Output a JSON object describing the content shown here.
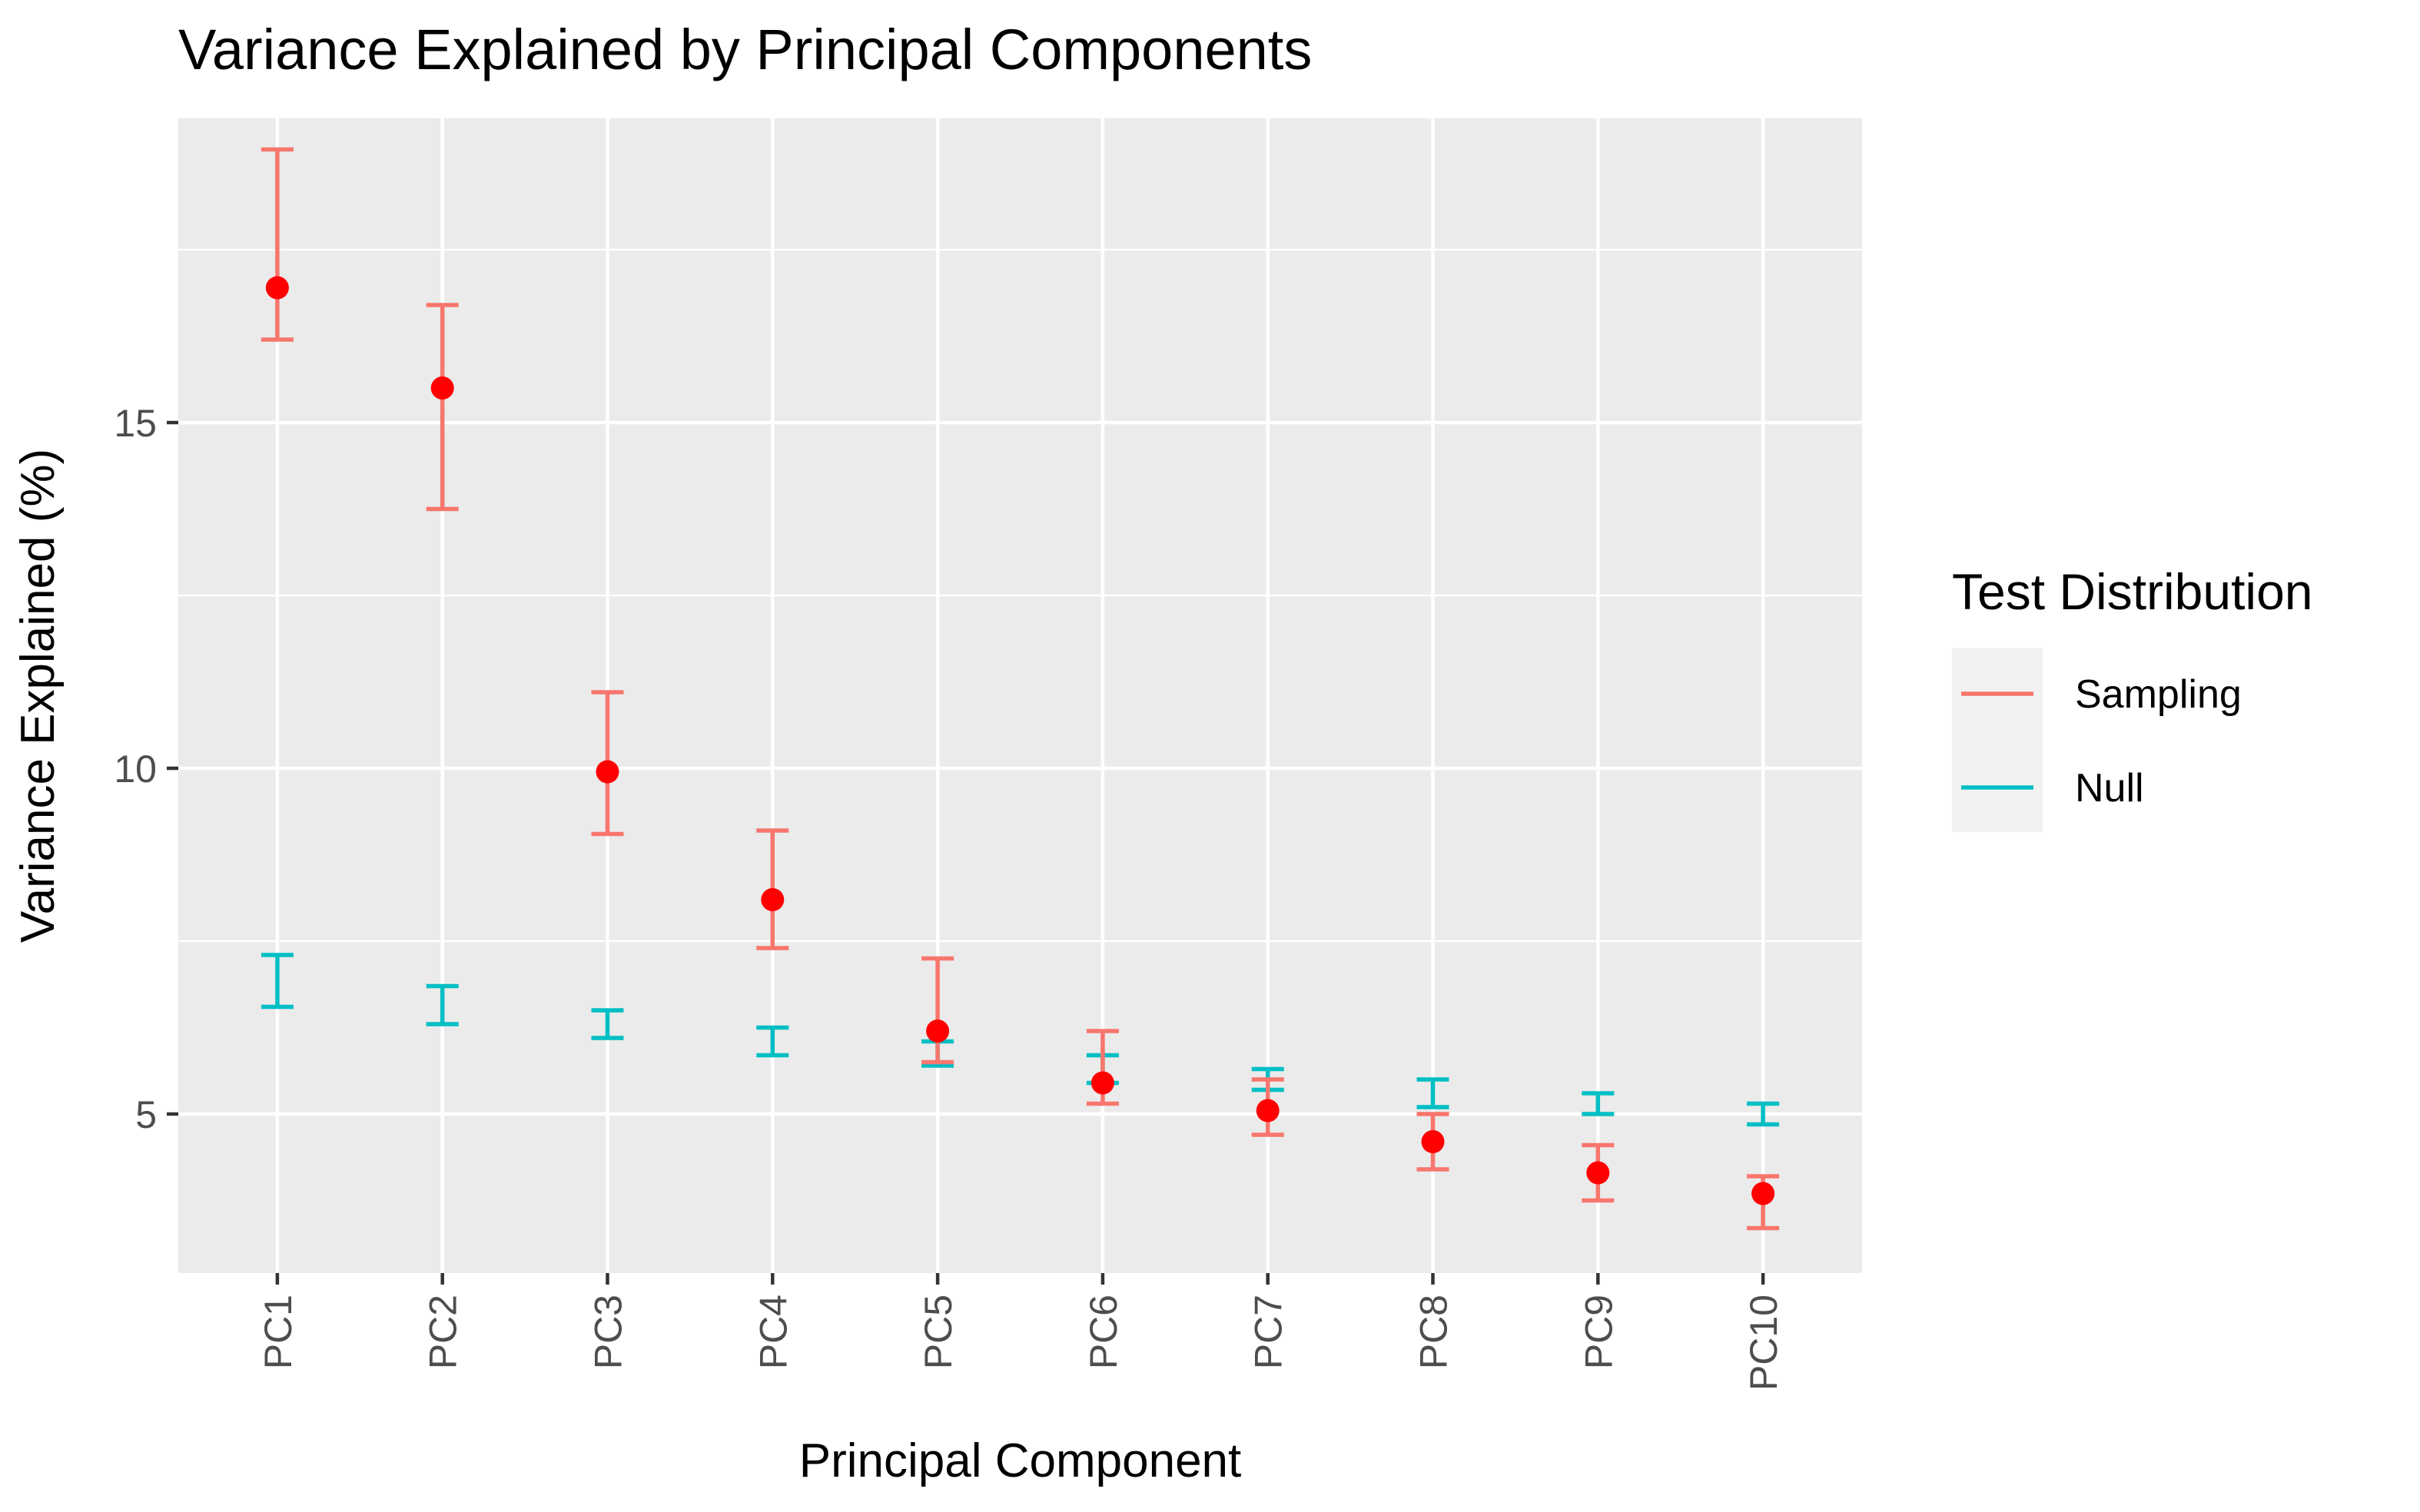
{
  "chart_data": {
    "type": "scatter",
    "title": "Variance Explained by Principal Components",
    "xlabel": "Principal Component",
    "ylabel": "Variance Explained (%)",
    "categories": [
      "PC1",
      "PC2",
      "PC3",
      "PC4",
      "PC5",
      "PC6",
      "PC7",
      "PC8",
      "PC9",
      "PC10"
    ],
    "ylim": [
      2.7,
      19.4
    ],
    "yticks": [
      5,
      10,
      15
    ],
    "ytick_labels": [
      "5",
      "10",
      "15"
    ],
    "grid": true,
    "legend": {
      "title": "Test Distribution",
      "placement": "right",
      "entries": [
        "Sampling",
        "Null"
      ]
    },
    "series": [
      {
        "name": "Sampling",
        "color": "#F8766D",
        "marker_color": "#FF0000",
        "values": [
          16.95,
          15.5,
          9.95,
          8.1,
          6.2,
          5.45,
          5.05,
          4.6,
          4.15,
          3.85
        ],
        "lower": [
          16.2,
          13.75,
          9.05,
          7.4,
          5.75,
          5.15,
          4.7,
          4.2,
          3.75,
          3.35
        ],
        "upper": [
          18.95,
          16.7,
          11.1,
          9.1,
          7.25,
          6.2,
          5.5,
          5.0,
          4.55,
          4.1
        ]
      },
      {
        "name": "Null",
        "color": "#00BFC4",
        "lower": [
          6.55,
          6.3,
          6.1,
          5.85,
          5.7,
          5.45,
          5.35,
          5.1,
          5.0,
          4.85
        ],
        "upper": [
          7.3,
          6.85,
          6.5,
          6.25,
          6.05,
          5.85,
          5.65,
          5.5,
          5.3,
          5.15
        ]
      }
    ]
  }
}
